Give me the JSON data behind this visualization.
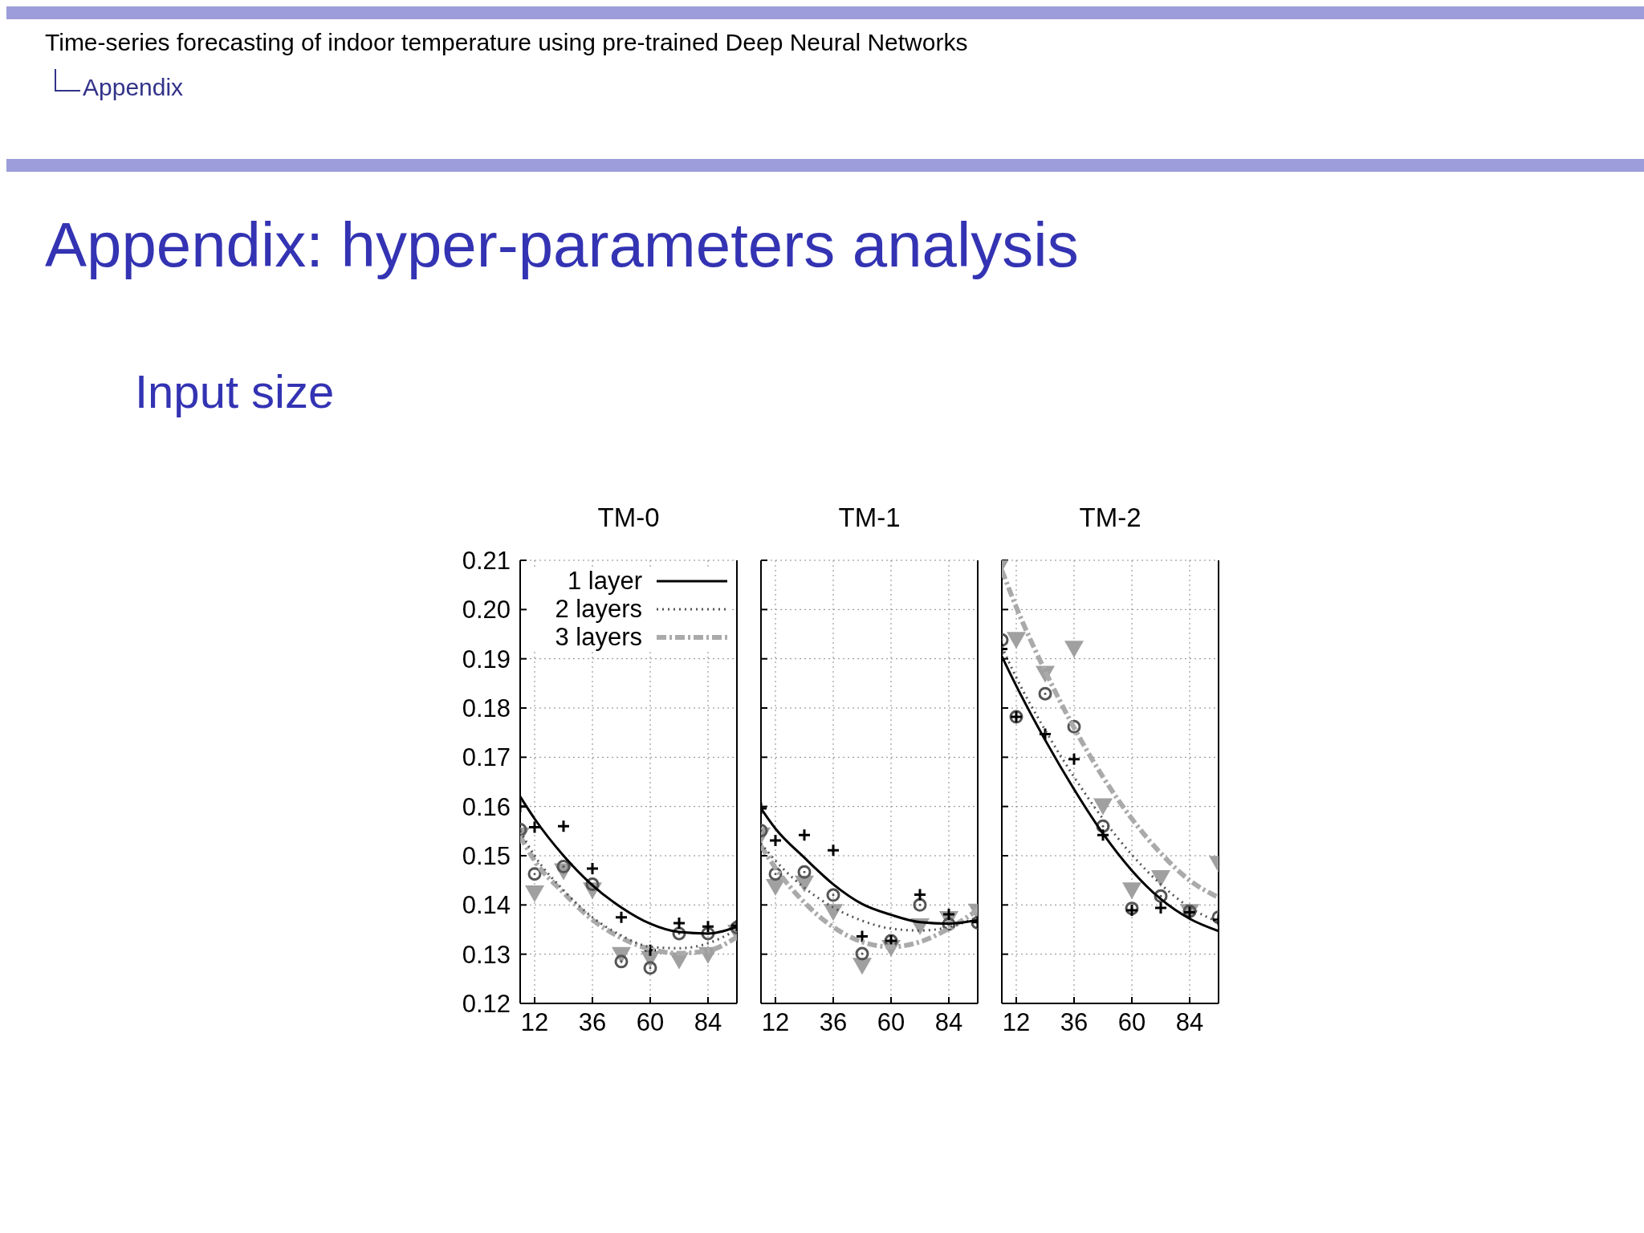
{
  "chart_data": [
    {
      "type": "line",
      "title": "TM-0",
      "x": [
        6,
        12,
        24,
        36,
        48,
        60,
        72,
        84,
        96
      ],
      "xlim": [
        6,
        96
      ],
      "xticks": [
        12,
        36,
        60,
        84
      ],
      "ylim": [
        0.12,
        0.21
      ],
      "yticks": [
        0.12,
        0.13,
        0.14,
        0.15,
        0.16,
        0.17,
        0.18,
        0.19,
        {
          "value": 0.2,
          "label": "0.20"
        },
        0.21
      ],
      "grid": true,
      "legend": "top",
      "annotations": [
        "Time-series forecasting of indoor temperature using pre-trained Deep Neural Networks",
        "Appendix",
        "Appendix: hyper-parameters analysis",
        "Input size"
      ],
      "series": [
        {
          "name": "1 layer",
          "type": "line",
          "color": "#000000",
          "line_style": "solid",
          "marker": "none",
          "values": [
            0.162,
            0.1575,
            0.15,
            0.144,
            0.1395,
            0.1362,
            0.1345,
            0.1342,
            0.1356
          ]
        },
        {
          "name": "2 layers",
          "type": "line",
          "color": "#555555",
          "line_style": "dotted",
          "marker": "none",
          "values": [
            0.155,
            0.15,
            0.143,
            0.1375,
            0.1338,
            0.1315,
            0.1312,
            0.1322,
            0.135
          ]
        },
        {
          "name": "3 layers",
          "type": "line",
          "color": "#aaaaaa",
          "line_style": "dashed",
          "marker": "none",
          "values": [
            0.154,
            0.149,
            0.1425,
            0.137,
            0.1333,
            0.131,
            0.1302,
            0.1307,
            0.1335
          ]
        },
        {
          "type": "scatter",
          "color": "#a0a0a0",
          "marker": "triangle",
          "values": [
            0.1543,
            0.1425,
            0.147,
            0.1431,
            0.13,
            0.1292,
            0.1289,
            0.13,
            0.1345
          ]
        },
        {
          "type": "scatter",
          "color": "#555555",
          "marker": "circle",
          "values": [
            0.1553,
            0.1463,
            0.1478,
            0.1442,
            0.1285,
            0.1272,
            0.1342,
            0.1342,
            0.1354
          ]
        },
        {
          "type": "scatter",
          "color": "#000000",
          "marker": "cross",
          "values": [
            0.16,
            0.1558,
            0.156,
            0.1474,
            0.1375,
            0.1308,
            0.1363,
            0.1356,
            0.1358
          ]
        }
      ]
    },
    {
      "type": "line",
      "title": "TM-1",
      "x": [
        6,
        12,
        24,
        36,
        48,
        60,
        72,
        84,
        96
      ],
      "xlim": [
        6,
        96
      ],
      "xticks": [
        12,
        36,
        60,
        84
      ],
      "ylim": [
        0.12,
        0.21
      ],
      "yticks": [
        0.12,
        0.13,
        0.14,
        0.15,
        0.16,
        0.17,
        0.18,
        0.19,
        0.2,
        0.21
      ],
      "grid": true,
      "tick_labels": "x",
      "series": [
        {
          "type": "line",
          "color": "#000000",
          "line_style": "solid",
          "marker": "none",
          "values": [
            0.1596,
            0.1555,
            0.1496,
            0.1442,
            0.1402,
            0.138,
            0.1365,
            0.1362,
            0.1369
          ]
        },
        {
          "type": "line",
          "color": "#555555",
          "line_style": "dotted",
          "marker": "none",
          "values": [
            0.1525,
            0.149,
            0.1435,
            0.1395,
            0.1368,
            0.1352,
            0.1348,
            0.1355,
            0.1375
          ]
        },
        {
          "type": "line",
          "color": "#aaaaaa",
          "line_style": "dashed",
          "marker": "none",
          "values": [
            0.152,
            0.1475,
            0.1405,
            0.1355,
            0.1325,
            0.1315,
            0.1325,
            0.1352,
            0.139
          ]
        },
        {
          "type": "scatter",
          "color": "#a0a0a0",
          "marker": "triangle",
          "values": [
            0.1543,
            0.1438,
            0.1445,
            0.1387,
            0.1278,
            0.1314,
            0.1358,
            0.1373,
            0.1388
          ]
        },
        {
          "type": "scatter",
          "color": "#555555",
          "marker": "circle",
          "values": [
            0.1551,
            0.1463,
            0.1467,
            0.142,
            0.1301,
            0.1327,
            0.14,
            0.1361,
            0.1364
          ]
        },
        {
          "type": "scatter",
          "color": "#000000",
          "marker": "cross",
          "values": [
            0.1596,
            0.1531,
            0.1542,
            0.1511,
            0.1336,
            0.1327,
            0.1421,
            0.1381,
            0.1365
          ]
        }
      ]
    },
    {
      "type": "line",
      "title": "TM-2",
      "x": [
        6,
        12,
        24,
        36,
        48,
        60,
        72,
        84,
        96
      ],
      "xlim": [
        6,
        96
      ],
      "xticks": [
        12,
        36,
        60,
        84
      ],
      "ylim": [
        0.12,
        0.21
      ],
      "yticks": [
        0.12,
        0.13,
        0.14,
        0.15,
        0.16,
        0.17,
        0.18,
        0.19,
        0.2,
        0.21
      ],
      "grid": true,
      "tick_labels": "x",
      "series": [
        {
          "type": "line",
          "color": "#000000",
          "line_style": "solid",
          "marker": "none",
          "values": [
            0.1905,
            0.1845,
            0.1735,
            0.1635,
            0.1545,
            0.147,
            0.1412,
            0.1372,
            0.1347
          ]
        },
        {
          "type": "line",
          "color": "#555555",
          "line_style": "dotted",
          "marker": "none",
          "values": [
            0.1925,
            0.1862,
            0.1755,
            0.166,
            0.1575,
            0.1502,
            0.1442,
            0.1395,
            0.1365
          ]
        },
        {
          "type": "line",
          "color": "#aaaaaa",
          "line_style": "dashed",
          "marker": "none",
          "values": [
            0.208,
            0.2005,
            0.1875,
            0.176,
            0.166,
            0.1575,
            0.1505,
            0.145,
            0.1415
          ]
        },
        {
          "type": "scatter",
          "color": "#a0a0a0",
          "marker": "triangle",
          "values": [
            0.2096,
            0.194,
            0.1871,
            0.1922,
            0.1602,
            0.1431,
            0.1456,
            0.1387,
            0.1485
          ]
        },
        {
          "type": "scatter",
          "color": "#555555",
          "marker": "circle",
          "values": [
            0.1938,
            0.1782,
            0.1829,
            0.1762,
            0.156,
            0.1393,
            0.1418,
            0.1387,
            0.1375
          ]
        },
        {
          "type": "scatter",
          "color": "#000000",
          "marker": "cross",
          "values": [
            0.192,
            0.1782,
            0.1747,
            0.1696,
            0.1542,
            0.1389,
            0.1394,
            0.1385,
            0.137
          ]
        }
      ]
    }
  ]
}
